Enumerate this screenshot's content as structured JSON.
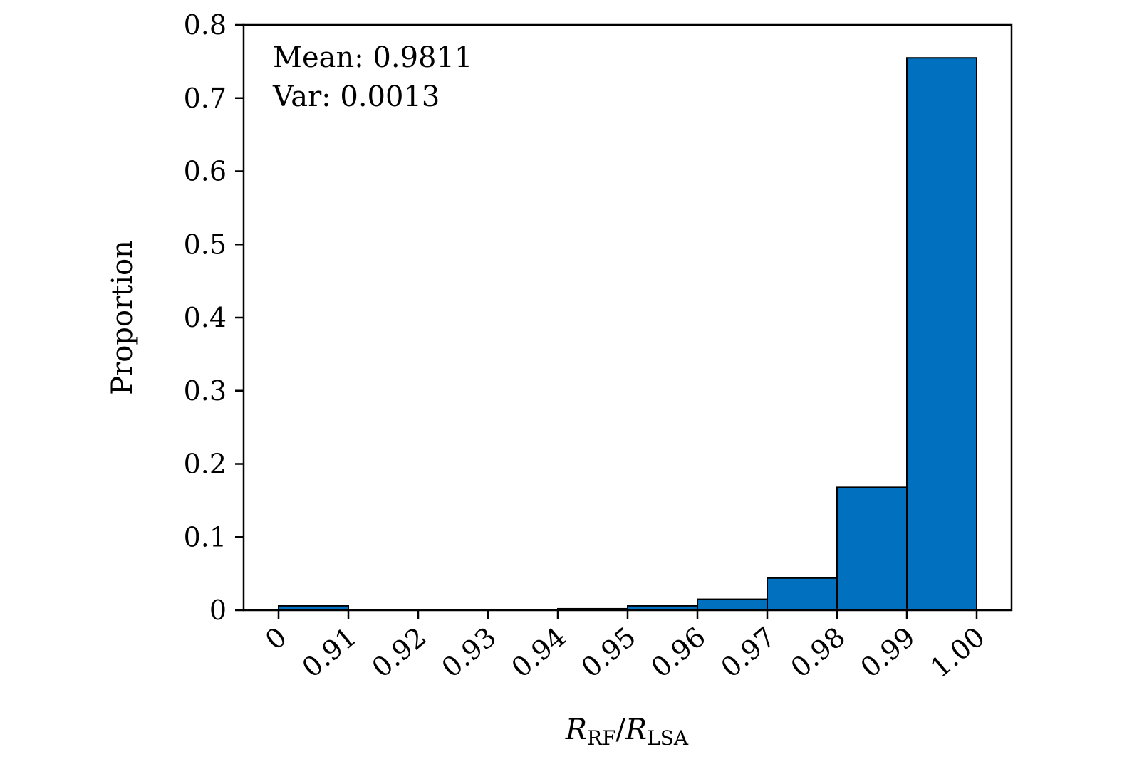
{
  "chart_data": {
    "type": "bar",
    "categories": [
      "0",
      "0.91",
      "0.92",
      "0.93",
      "0.94",
      "0.95",
      "0.96",
      "0.97",
      "0.98",
      "0.99",
      "1.00"
    ],
    "bins": [
      {
        "from": "0",
        "to": "0.91",
        "value": 0.006
      },
      {
        "from": "0.91",
        "to": "0.92",
        "value": 0
      },
      {
        "from": "0.92",
        "to": "0.93",
        "value": 0
      },
      {
        "from": "0.93",
        "to": "0.94",
        "value": 0
      },
      {
        "from": "0.94",
        "to": "0.95",
        "value": 0.002
      },
      {
        "from": "0.95",
        "to": "0.96",
        "value": 0.006
      },
      {
        "from": "0.96",
        "to": "0.97",
        "value": 0.015
      },
      {
        "from": "0.97",
        "to": "0.98",
        "value": 0.044
      },
      {
        "from": "0.98",
        "to": "0.99",
        "value": 0.168
      },
      {
        "from": "0.99",
        "to": "1.00",
        "value": 0.755
      }
    ],
    "ylim": [
      0,
      0.8
    ],
    "yticks": [
      {
        "value": 0,
        "label": "0"
      },
      {
        "value": 0.1,
        "label": "0.1"
      },
      {
        "value": 0.2,
        "label": "0.2"
      },
      {
        "value": 0.3,
        "label": "0.3"
      },
      {
        "value": 0.4,
        "label": "0.4"
      },
      {
        "value": 0.5,
        "label": "0.5"
      },
      {
        "value": 0.6,
        "label": "0.6"
      },
      {
        "value": 0.7,
        "label": "0.7"
      },
      {
        "value": 0.8,
        "label": "0.8"
      }
    ],
    "ylabel": "Proportion",
    "xlabel": {
      "main1": "R",
      "sub1": "RF",
      "slash": "/",
      "main2": "R",
      "sub2": "LSA"
    },
    "annotations": [
      "Mean: 0.9811",
      "Var: 0.0013"
    ],
    "bar_color": "#0070bf",
    "grid": false,
    "legend": "none"
  }
}
